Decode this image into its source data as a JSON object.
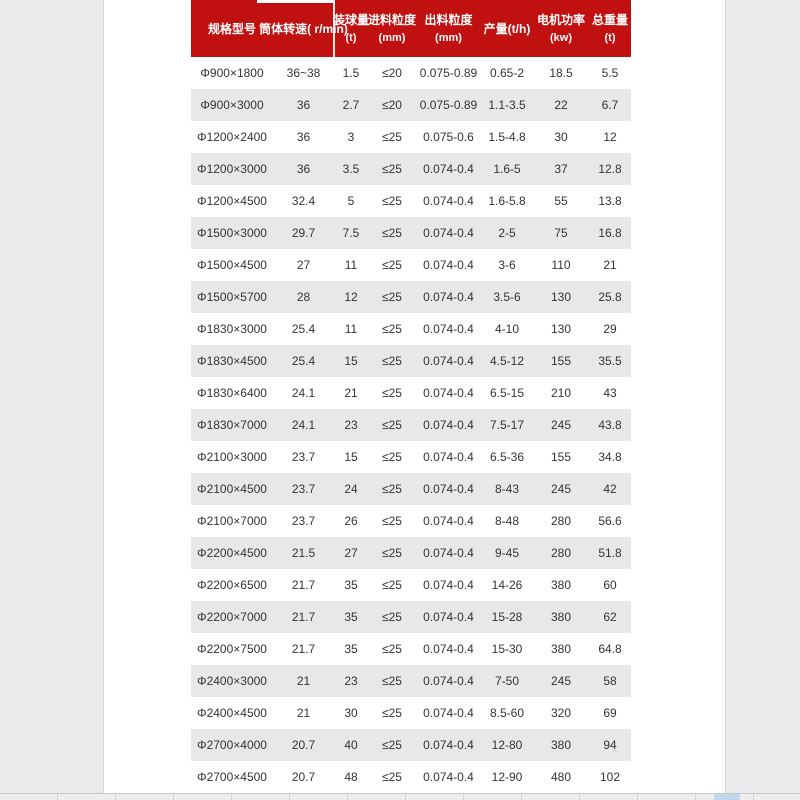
{
  "colors": {
    "header_bg": "#c11010",
    "stripe": "#e8e8e8",
    "page_bg": "#e9eaeb",
    "text": "#333333",
    "header_text": "#ffffff"
  },
  "table": {
    "columns": [
      {
        "label": "规格型号",
        "unit": ""
      },
      {
        "label": "筒体转速( r/min)",
        "unit": ""
      },
      {
        "label": "装球量",
        "unit": "(t)"
      },
      {
        "label": "进料粒度",
        "unit": "(mm)"
      },
      {
        "label": "出料粒度",
        "unit": "(mm)"
      },
      {
        "label": "产量(t/h)",
        "unit": ""
      },
      {
        "label": "电机功率",
        "unit": "(kw)"
      },
      {
        "label": "总重量",
        "unit": "(t)"
      }
    ],
    "rows": [
      [
        "Φ900×1800",
        "36~38",
        "1.5",
        "≤20",
        "0.075-0.89",
        "0.65-2",
        "18.5",
        "5.5"
      ],
      [
        "Φ900×3000",
        "36",
        "2.7",
        "≤20",
        "0.075-0.89",
        "1.1-3.5",
        "22",
        "6.7"
      ],
      [
        "Φ1200×2400",
        "36",
        "3",
        "≤25",
        "0.075-0.6",
        "1.5-4.8",
        "30",
        "12"
      ],
      [
        "Φ1200×3000",
        "36",
        "3.5",
        "≤25",
        "0.074-0.4",
        "1.6-5",
        "37",
        "12.8"
      ],
      [
        "Φ1200×4500",
        "32.4",
        "5",
        "≤25",
        "0.074-0.4",
        "1.6-5.8",
        "55",
        "13.8"
      ],
      [
        "Φ1500×3000",
        "29.7",
        "7.5",
        "≤25",
        "0.074-0.4",
        "2-5",
        "75",
        "16.8"
      ],
      [
        "Φ1500×4500",
        "27",
        "11",
        "≤25",
        "0.074-0.4",
        "3-6",
        "110",
        "21"
      ],
      [
        "Φ1500×5700",
        "28",
        "12",
        "≤25",
        "0.074-0.4",
        "3.5-6",
        "130",
        "25.8"
      ],
      [
        "Φ1830×3000",
        "25.4",
        "11",
        "≤25",
        "0.074-0.4",
        "4-10",
        "130",
        "29"
      ],
      [
        "Φ1830×4500",
        "25.4",
        "15",
        "≤25",
        "0.074-0.4",
        "4.5-12",
        "155",
        "35.5"
      ],
      [
        "Φ1830×6400",
        "24.1",
        "21",
        "≤25",
        "0.074-0.4",
        "6.5-15",
        "210",
        "43"
      ],
      [
        "Φ1830×7000",
        "24.1",
        "23",
        "≤25",
        "0.074-0.4",
        "7.5-17",
        "245",
        "43.8"
      ],
      [
        "Φ2100×3000",
        "23.7",
        "15",
        "≤25",
        "0.074-0.4",
        "6.5-36",
        "155",
        "34.8"
      ],
      [
        "Φ2100×4500",
        "23.7",
        "24",
        "≤25",
        "0.074-0.4",
        "8-43",
        "245",
        "42"
      ],
      [
        "Φ2100×7000",
        "23.7",
        "26",
        "≤25",
        "0.074-0.4",
        "8-48",
        "280",
        "56.6"
      ],
      [
        "Φ2200×4500",
        "21.5",
        "27",
        "≤25",
        "0.074-0.4",
        "9-45",
        "280",
        "51.8"
      ],
      [
        "Φ2200×6500",
        "21.7",
        "35",
        "≤25",
        "0.074-0.4",
        "14-26",
        "380",
        "60"
      ],
      [
        "Φ2200×7000",
        "21.7",
        "35",
        "≤25",
        "0.074-0.4",
        "15-28",
        "380",
        "62"
      ],
      [
        "Φ2200×7500",
        "21.7",
        "35",
        "≤25",
        "0.074-0.4",
        "15-30",
        "380",
        "64.8"
      ],
      [
        "Φ2400×3000",
        "21",
        "23",
        "≤25",
        "0.074-0.4",
        "7-50",
        "245",
        "58"
      ],
      [
        "Φ2400×4500",
        "21",
        "30",
        "≤25",
        "0.074-0.4",
        "8.5-60",
        "320",
        "69"
      ],
      [
        "Φ2700×4000",
        "20.7",
        "40",
        "≤25",
        "0.074-0.4",
        "12-80",
        "380",
        "94"
      ],
      [
        "Φ2700×4500",
        "20.7",
        "48",
        "≤25",
        "0.074-0.4",
        "12-90",
        "480",
        "102"
      ]
    ]
  }
}
